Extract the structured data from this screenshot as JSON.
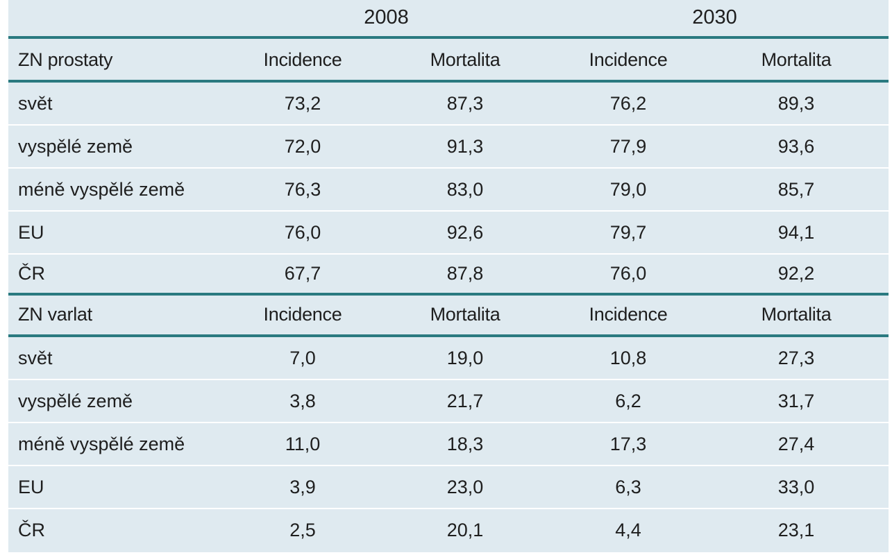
{
  "years": [
    "2008",
    "2030"
  ],
  "sections": [
    {
      "label": "ZN prostaty",
      "columns": [
        "Incidence",
        "Mortalita",
        "Incidence",
        "Mortalita"
      ],
      "rows": [
        {
          "region": "svět",
          "values": [
            "73,2",
            "87,3",
            "76,2",
            "89,3"
          ]
        },
        {
          "region": "vyspělé země",
          "values": [
            "72,0",
            "91,3",
            "77,9",
            "93,6"
          ]
        },
        {
          "region": "méně vyspělé země",
          "values": [
            "76,3",
            "83,0",
            "79,0",
            "85,7"
          ]
        },
        {
          "region": "EU",
          "values": [
            "76,0",
            "92,6",
            "79,7",
            "94,1"
          ]
        },
        {
          "region": "ČR",
          "values": [
            "67,7",
            "87,8",
            "76,0",
            "92,2"
          ]
        }
      ]
    },
    {
      "label": "ZN varlat",
      "columns": [
        "Incidence",
        "Mortalita",
        "Incidence",
        "Mortalita"
      ],
      "rows": [
        {
          "region": "svět",
          "values": [
            "7,0",
            "19,0",
            "10,8",
            "27,3"
          ]
        },
        {
          "region": "vyspělé země",
          "values": [
            "3,8",
            "21,7",
            "6,2",
            "31,7"
          ]
        },
        {
          "region": "méně vyspělé země",
          "values": [
            "11,0",
            "18,3",
            "17,3",
            "27,4"
          ]
        },
        {
          "region": "EU",
          "values": [
            "3,9",
            "23,0",
            "6,3",
            "33,0"
          ]
        },
        {
          "region": "ČR",
          "values": [
            "2,5",
            "20,1",
            "4,4",
            "23,1"
          ]
        }
      ]
    }
  ]
}
